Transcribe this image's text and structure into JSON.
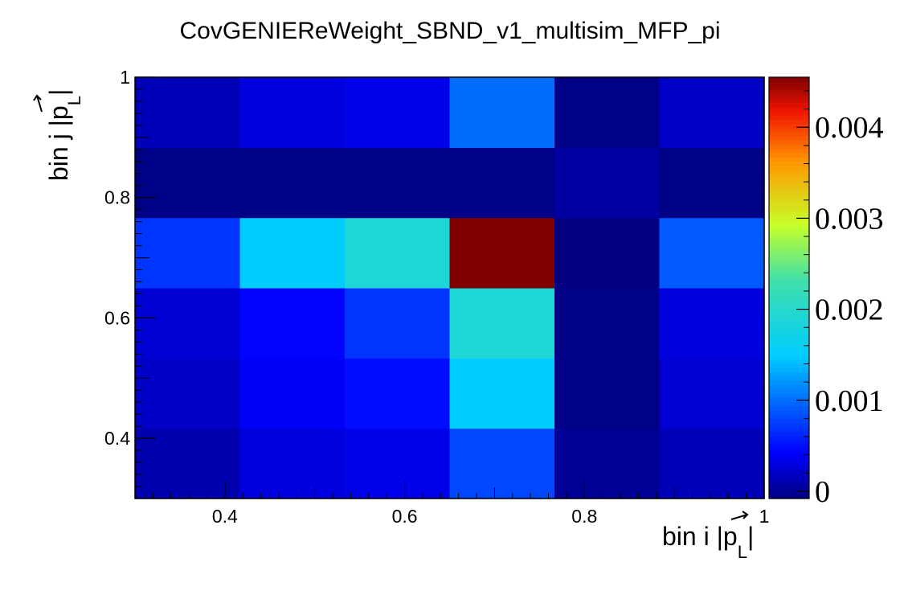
{
  "chart_data": {
    "type": "heatmap",
    "title": "CovGENIEReWeight_SBND_v1_multisim_MFP_pi",
    "xlabel": {
      "main": "bin i |",
      "vec": "p",
      "sub": "L",
      "close": "|"
    },
    "ylabel": {
      "main": "bin j |",
      "vec": "p",
      "sub": "L",
      "close": "|"
    },
    "x_edges": [
      0.3,
      0.4167,
      0.5333,
      0.65,
      0.7667,
      0.8833,
      1.0
    ],
    "y_edges": [
      0.3,
      0.4167,
      0.5333,
      0.65,
      0.7667,
      0.8833,
      1.0
    ],
    "xlim": [
      0.3,
      1.0
    ],
    "ylim": [
      0.3,
      1.0
    ],
    "x_ticks": [
      {
        "value": 0.4,
        "label": "0.4"
      },
      {
        "value": 0.6,
        "label": "0.6"
      },
      {
        "value": 0.8,
        "label": "0.8"
      },
      {
        "value": 1.0,
        "label": "1"
      }
    ],
    "y_ticks": [
      {
        "value": 0.4,
        "label": "0.4"
      },
      {
        "value": 0.6,
        "label": "0.6"
      },
      {
        "value": 0.8,
        "label": "0.8"
      },
      {
        "value": 1.0,
        "label": "1"
      }
    ],
    "z_range": [
      -8e-05,
      0.00455
    ],
    "z_ticks": [
      {
        "value": 0,
        "label": "0"
      },
      {
        "value": 0.001,
        "label": "0.001"
      },
      {
        "value": 0.002,
        "label": "0.002"
      },
      {
        "value": 0.003,
        "label": "0.003"
      },
      {
        "value": 0.004,
        "label": "0.004"
      }
    ],
    "values": [
      [
        0.0001,
        0.0003,
        0.00035,
        0.0008,
        0.0,
        0.00015
      ],
      [
        0.0002,
        0.0004,
        0.0005,
        0.0015,
        -5e-05,
        0.00025
      ],
      [
        0.00025,
        0.00045,
        0.0007,
        0.0019,
        -5e-05,
        0.0003
      ],
      [
        0.0007,
        0.0015,
        0.0019,
        0.00455,
        -8e-05,
        0.0009
      ],
      [
        -5e-05,
        -5e-05,
        -5e-05,
        -5e-05,
        5e-05,
        -5e-05
      ],
      [
        0.00015,
        0.0003,
        0.00035,
        0.001,
        -5e-05,
        0.0002
      ]
    ],
    "colormap": "jet",
    "grid": false,
    "legend": "colorbar-right"
  }
}
